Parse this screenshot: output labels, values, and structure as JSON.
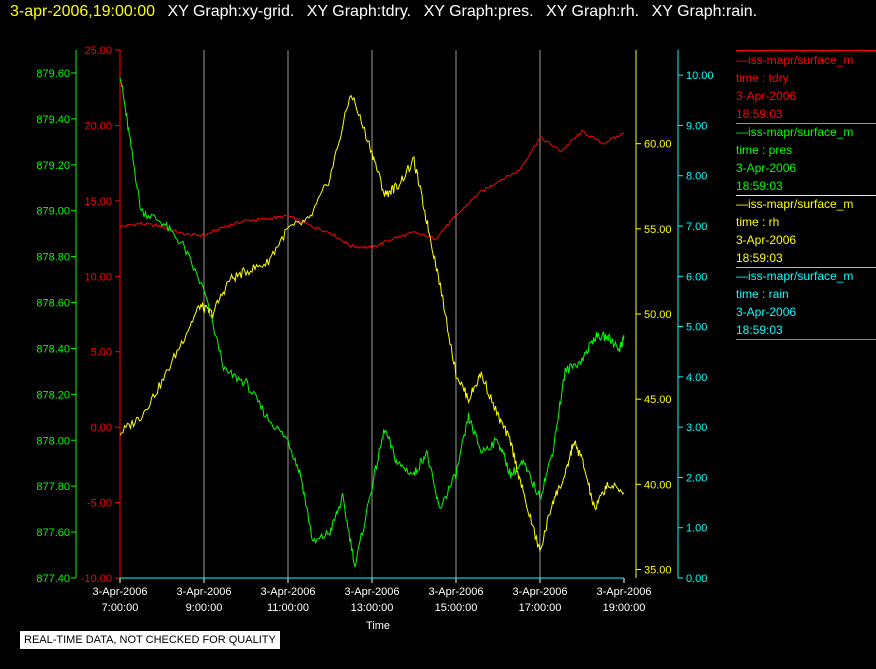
{
  "header": {
    "timestamp": "3-apr-2006,19:00:00",
    "graphs": [
      "XY Graph:xy-grid.",
      "XY Graph:tdry.",
      "XY Graph:pres.",
      "XY Graph:rh.",
      "XY Graph:rain."
    ],
    "timestamp_color": "#ffff00",
    "graphs_color": "#ffffff"
  },
  "legend": [
    {
      "name": "—iss-mapr/surface_m",
      "field": "time : tdry",
      "date": "3-Apr-2006",
      "time": "18:59:03",
      "color": "#ff0000"
    },
    {
      "name": "—iss-mapr/surface_m",
      "field": "time : pres",
      "date": "3-Apr-2006",
      "time": "18:59:03",
      "color": "#00ff00"
    },
    {
      "name": "—iss-mapr/surface_m",
      "field": "time : rh",
      "date": "3-Apr-2006",
      "time": "18:59:03",
      "color": "#ffff00"
    },
    {
      "name": "—iss-mapr/surface_m",
      "field": "time : rain",
      "date": "3-Apr-2006",
      "time": "18:59:03",
      "color": "#00ffff"
    }
  ],
  "disclaimer": "REAL-TIME DATA, NOT CHECKED FOR QUALITY",
  "chart_data": {
    "type": "line",
    "xlabel": "Time",
    "x_ticks": [
      {
        "date": "3-Apr-2006",
        "time": "7:00:00",
        "hour": 7
      },
      {
        "date": "3-Apr-2006",
        "time": "9:00:00",
        "hour": 9
      },
      {
        "date": "3-Apr-2006",
        "time": "11:00:00",
        "hour": 11
      },
      {
        "date": "3-Apr-2006",
        "time": "13:00:00",
        "hour": 13
      },
      {
        "date": "3-Apr-2006",
        "time": "15:00:00",
        "hour": 15
      },
      {
        "date": "3-Apr-2006",
        "time": "17:00:00",
        "hour": 17
      },
      {
        "date": "3-Apr-2006",
        "time": "19:00:00",
        "hour": 19
      }
    ],
    "xlim": [
      7,
      19
    ],
    "axes": {
      "tdry": {
        "color": "#ff0000",
        "ylim": [
          -10,
          25
        ],
        "ticks": [
          "-10.00",
          "-5.00",
          "0.00",
          "5.00",
          "10.00",
          "15.00",
          "20.00",
          "25.00"
        ]
      },
      "pres": {
        "color": "#00ff00",
        "ylim": [
          877.4,
          879.7
        ],
        "ticks": [
          "877.40",
          "877.60",
          "877.80",
          "878.00",
          "878.20",
          "878.40",
          "878.60",
          "878.80",
          "879.00",
          "879.20",
          "879.40",
          "879.60"
        ]
      },
      "rh": {
        "color": "#ffff00",
        "ylim": [
          34.5,
          65.5
        ],
        "ticks": [
          "35.00",
          "40.00",
          "45.00",
          "50.00",
          "55.00",
          "60.00"
        ]
      },
      "rain": {
        "color": "#00ffff",
        "ylim": [
          0,
          10.5
        ],
        "ticks": [
          "0.00",
          "1.00",
          "2.00",
          "3.00",
          "4.00",
          "5.00",
          "6.00",
          "7.00",
          "8.00",
          "9.00",
          "10.00"
        ]
      }
    },
    "series": [
      {
        "name": "tdry",
        "color": "#ff0000",
        "x": [
          7.0,
          7.5,
          8.0,
          8.5,
          9.0,
          9.5,
          10.0,
          10.5,
          11.0,
          11.5,
          12.0,
          12.5,
          13.0,
          13.5,
          14.0,
          14.5,
          15.0,
          15.5,
          16.0,
          16.5,
          17.0,
          17.5,
          18.0,
          18.5,
          19.0
        ],
        "y": [
          13.3,
          13.5,
          13.3,
          12.8,
          12.7,
          13.3,
          13.7,
          13.8,
          14.0,
          13.4,
          12.9,
          12.0,
          11.9,
          12.5,
          12.9,
          12.5,
          14.0,
          15.4,
          16.3,
          17.0,
          19.2,
          18.3,
          19.6,
          18.8,
          19.5
        ]
      },
      {
        "name": "pres",
        "color": "#00ff00",
        "x": [
          7.0,
          7.2,
          7.5,
          8.0,
          8.5,
          9.0,
          9.5,
          10.0,
          10.5,
          11.0,
          11.3,
          11.6,
          12.0,
          12.3,
          12.6,
          13.0,
          13.3,
          13.6,
          14.0,
          14.3,
          14.6,
          15.0,
          15.3,
          15.6,
          16.0,
          16.3,
          16.6,
          17.0,
          17.3,
          17.6,
          18.0,
          18.3,
          18.6,
          18.9,
          19.0
        ],
        "y": [
          879.6,
          879.35,
          879.0,
          878.95,
          878.85,
          878.65,
          878.3,
          878.25,
          878.1,
          878.0,
          877.85,
          877.55,
          877.6,
          877.75,
          877.45,
          877.8,
          878.05,
          877.9,
          877.85,
          877.95,
          877.7,
          877.85,
          878.1,
          877.95,
          878.0,
          877.85,
          877.9,
          877.75,
          877.95,
          878.3,
          878.35,
          878.45,
          878.45,
          878.4,
          878.45
        ]
      },
      {
        "name": "rh",
        "color": "#ffff00",
        "x": [
          7.0,
          7.5,
          8.0,
          8.5,
          8.9,
          9.2,
          9.6,
          10.0,
          10.5,
          11.0,
          11.5,
          12.0,
          12.5,
          13.0,
          13.3,
          13.6,
          14.0,
          14.3,
          14.6,
          15.0,
          15.3,
          15.6,
          16.0,
          16.3,
          16.6,
          17.0,
          17.3,
          17.6,
          17.8,
          18.0,
          18.3,
          18.6,
          19.0
        ],
        "y": [
          43.0,
          44.0,
          46.0,
          48.5,
          50.5,
          50.0,
          52.0,
          52.5,
          53.0,
          55.0,
          55.5,
          58.0,
          63.0,
          59.5,
          57.0,
          57.5,
          59.0,
          55.5,
          52.0,
          46.5,
          45.0,
          46.5,
          44.0,
          42.5,
          39.5,
          36.0,
          39.0,
          40.5,
          42.5,
          41.5,
          38.5,
          40.0,
          39.5
        ]
      },
      {
        "name": "rain",
        "color": "#00ffff",
        "x": [
          7.0,
          19.0
        ],
        "y": [
          0.0,
          0.0
        ]
      }
    ],
    "grid": "vertical only",
    "legend_position": "right"
  }
}
